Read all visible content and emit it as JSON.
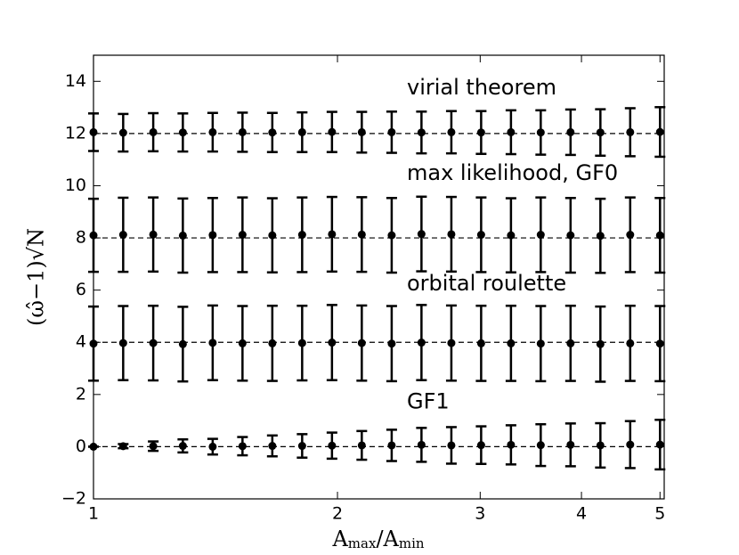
{
  "chart_data": {
    "type": "errorbar",
    "xlabel": [
      "A",
      "max",
      "/A",
      "min"
    ],
    "ylabel": "(ω̂−1)√N",
    "xscale": "log",
    "xlim": [
      1,
      5.06
    ],
    "ylim": [
      -2,
      15
    ],
    "xticks": [
      1,
      2,
      3,
      4,
      5
    ],
    "yticks": [
      {
        "value": -2,
        "label": "−2"
      },
      0,
      2,
      4,
      6,
      8,
      10,
      12,
      14
    ],
    "x": [
      1,
      1.088,
      1.185,
      1.289,
      1.403,
      1.527,
      1.662,
      1.809,
      1.969,
      2.143,
      2.333,
      2.539,
      2.764,
      3.008,
      3.274,
      3.563,
      3.878,
      4.221,
      4.594,
      5
    ],
    "series": [
      {
        "name": "virial theorem",
        "color": "#000000",
        "reference": 12,
        "values": [
          12.05,
          12.03,
          12.05,
          12.04,
          12.05,
          12.05,
          12.04,
          12.05,
          12.06,
          12.05,
          12.05,
          12.04,
          12.05,
          12.04,
          12.05,
          12.04,
          12.05,
          12.04,
          12.05,
          12.06
        ],
        "errors": [
          0.72,
          0.72,
          0.73,
          0.73,
          0.74,
          0.75,
          0.75,
          0.76,
          0.77,
          0.78,
          0.79,
          0.8,
          0.81,
          0.82,
          0.84,
          0.85,
          0.87,
          0.89,
          0.92,
          0.95
        ]
      },
      {
        "name": "max likelihood, GF0",
        "color": "#000000",
        "reference": 8,
        "values": [
          8.1,
          8.12,
          8.13,
          8.09,
          8.11,
          8.12,
          8.1,
          8.12,
          8.14,
          8.13,
          8.1,
          8.15,
          8.14,
          8.12,
          8.1,
          8.12,
          8.1,
          8.08,
          8.12,
          8.1
        ],
        "errors": [
          1.4,
          1.42,
          1.42,
          1.42,
          1.42,
          1.43,
          1.42,
          1.43,
          1.43,
          1.43,
          1.43,
          1.43,
          1.43,
          1.43,
          1.42,
          1.43,
          1.43,
          1.42,
          1.43,
          1.43
        ]
      },
      {
        "name": "orbital roulette",
        "color": "#000000",
        "reference": 4,
        "values": [
          3.95,
          3.97,
          3.97,
          3.93,
          3.98,
          3.96,
          3.96,
          3.97,
          3.99,
          3.97,
          3.95,
          3.99,
          3.97,
          3.96,
          3.96,
          3.95,
          3.96,
          3.93,
          3.96,
          3.95
        ],
        "errors": [
          1.42,
          1.42,
          1.43,
          1.43,
          1.43,
          1.43,
          1.44,
          1.43,
          1.44,
          1.44,
          1.44,
          1.44,
          1.44,
          1.44,
          1.44,
          1.44,
          1.44,
          1.44,
          1.44,
          1.44
        ]
      },
      {
        "name": "GF1",
        "color": "#000000",
        "reference": 0,
        "values": [
          0,
          0.02,
          0.02,
          0.03,
          0,
          0.02,
          0.03,
          0.03,
          0.04,
          0.05,
          0.05,
          0.07,
          0.05,
          0.06,
          0.07,
          0.06,
          0.07,
          0.05,
          0.08,
          0.08
        ],
        "errors": [
          0,
          0.08,
          0.18,
          0.25,
          0.3,
          0.35,
          0.4,
          0.45,
          0.5,
          0.55,
          0.6,
          0.65,
          0.7,
          0.72,
          0.75,
          0.8,
          0.82,
          0.85,
          0.9,
          0.95
        ]
      }
    ]
  }
}
